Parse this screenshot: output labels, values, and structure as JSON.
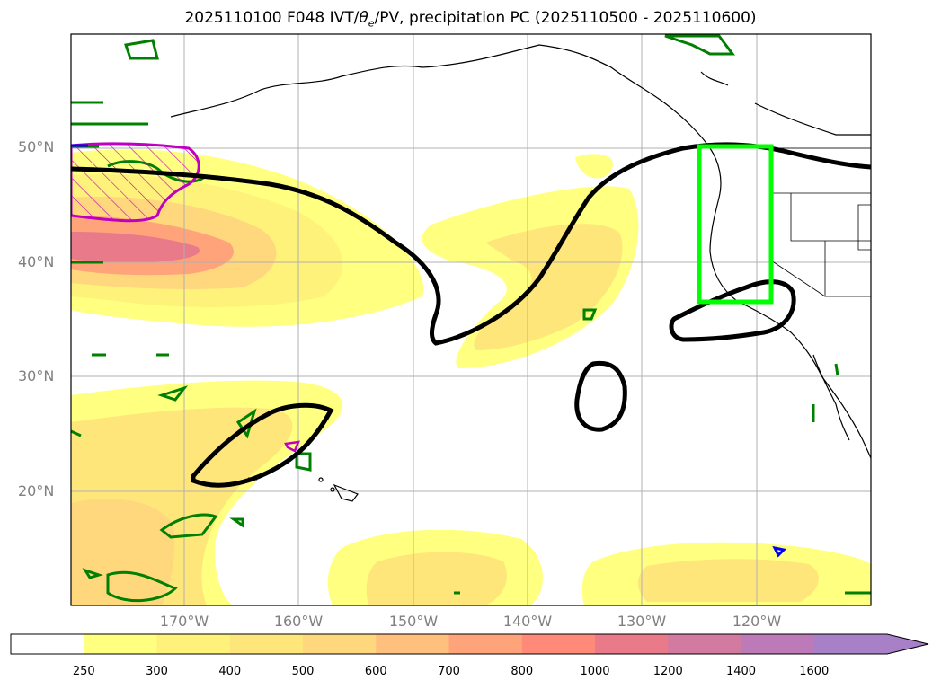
{
  "title": {
    "prefix": "2025110100 F048 IVT/",
    "theta": "θ",
    "theta_sub": "e",
    "suffix": "/PV, precipitation PC (2025110500 - 2025110600)"
  },
  "lat_labels": [
    "50°N",
    "40°N",
    "30°N",
    "20°N"
  ],
  "lon_labels": [
    "170°W",
    "160°W",
    "150°W",
    "140°W",
    "130°W",
    "120°W"
  ],
  "colorbar": {
    "levels": [
      "250",
      "300",
      "400",
      "500",
      "600",
      "700",
      "800",
      "1000",
      "1200",
      "1400",
      "1600"
    ],
    "colors": [
      "#ffffff",
      "#ffff80",
      "#fff27a",
      "#ffe67a",
      "#ffd77d",
      "#ffc07d",
      "#ffa47a",
      "#ff8a7a",
      "#e87a8a",
      "#d27aa0",
      "#bd7ab8",
      "#a880c8"
    ],
    "extend": "max"
  },
  "legend_colors": {
    "ivt_fill": "#ff8a7a",
    "pv_contour": "#000000",
    "theta_green": "#008000",
    "magenta": "#c000c0",
    "blue": "#0000ff",
    "region_box": "#00ff00"
  }
}
